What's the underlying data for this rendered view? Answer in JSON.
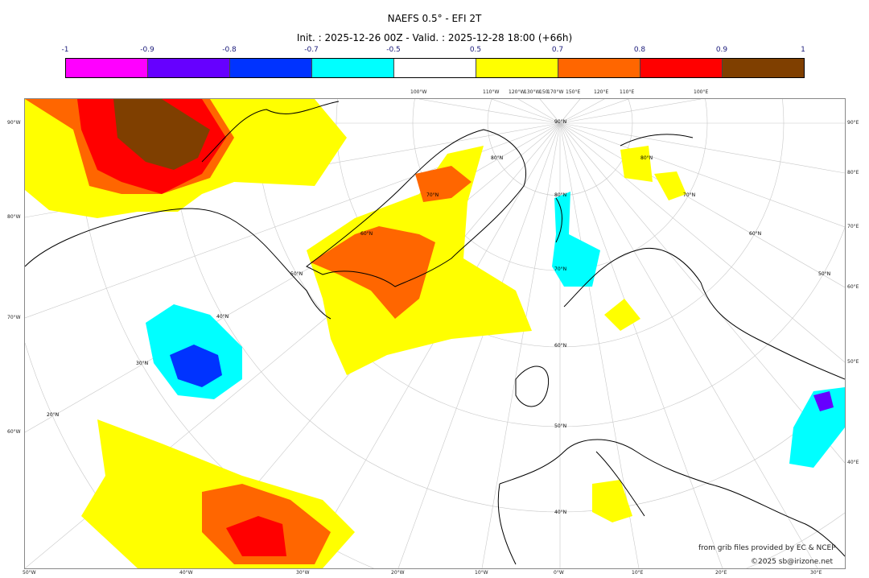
{
  "header": {
    "title": "NAEFS 0.5° - EFI 2T",
    "subtitle": "Init. : 2025-12-26 00Z - Valid. : 2025-12-28 18:00 (+66h)"
  },
  "colorbar": {
    "labels": [
      "-1",
      "-0.9",
      "-0.8",
      "-0.7",
      "-0.5",
      "0.5",
      "0.7",
      "0.8",
      "0.9",
      "1"
    ],
    "colors": [
      "#ff00ff",
      "#6600ff",
      "#0033ff",
      "#00ffff",
      "#ffffff",
      "#ffff00",
      "#ff6600",
      "#ff0000",
      "#ff0000",
      "#7f3f00"
    ],
    "bins": [
      {
        "range": "-1 to -0.9",
        "color": "#ff00ff"
      },
      {
        "range": "-0.9 to -0.8",
        "color": "#6600ff"
      },
      {
        "range": "-0.8 to -0.7",
        "color": "#0033ff"
      },
      {
        "range": "-0.7 to -0.5",
        "color": "#00ffff"
      },
      {
        "range": "-0.5 to 0.5",
        "color": "#ffffff"
      },
      {
        "range": "0.5 to 0.7",
        "color": "#ffff00"
      },
      {
        "range": "0.7 to 0.8",
        "color": "#ff6600"
      },
      {
        "range": "0.8 to 0.9",
        "color": "#ff0000"
      },
      {
        "range": "0.9 to 1",
        "color": "#7f3f00"
      }
    ]
  },
  "axes": {
    "left": [
      "90°W",
      "80°W",
      "70°W",
      "60°W"
    ],
    "right": [
      "90°E",
      "80°E",
      "70°E",
      "60°E",
      "50°E",
      "40°E"
    ],
    "bottom": [
      "50°W",
      "40°W",
      "30°W",
      "20°W",
      "10°W",
      "0°W",
      "10°E",
      "20°E",
      "30°E"
    ],
    "top": [
      "100°W",
      "110°W",
      "120°W",
      "130°W",
      "150",
      "170°W",
      "150°E",
      "120°E",
      "110°E",
      "100°E"
    ]
  },
  "grid_labels": {
    "center_meridian": [
      "90°N",
      "80°N",
      "70°N",
      "60°N",
      "50°N",
      "40°N"
    ],
    "west_arc": [
      "80°N",
      "70°N",
      "60°N",
      "50°N",
      "40°N",
      "30°N",
      "20°N"
    ],
    "east_arc": [
      "80°N",
      "70°N",
      "60°N",
      "50°N"
    ]
  },
  "credits": {
    "source": "from grib files provided by EC & NCEP",
    "copyright": "©2025 sb@irizone.net"
  }
}
